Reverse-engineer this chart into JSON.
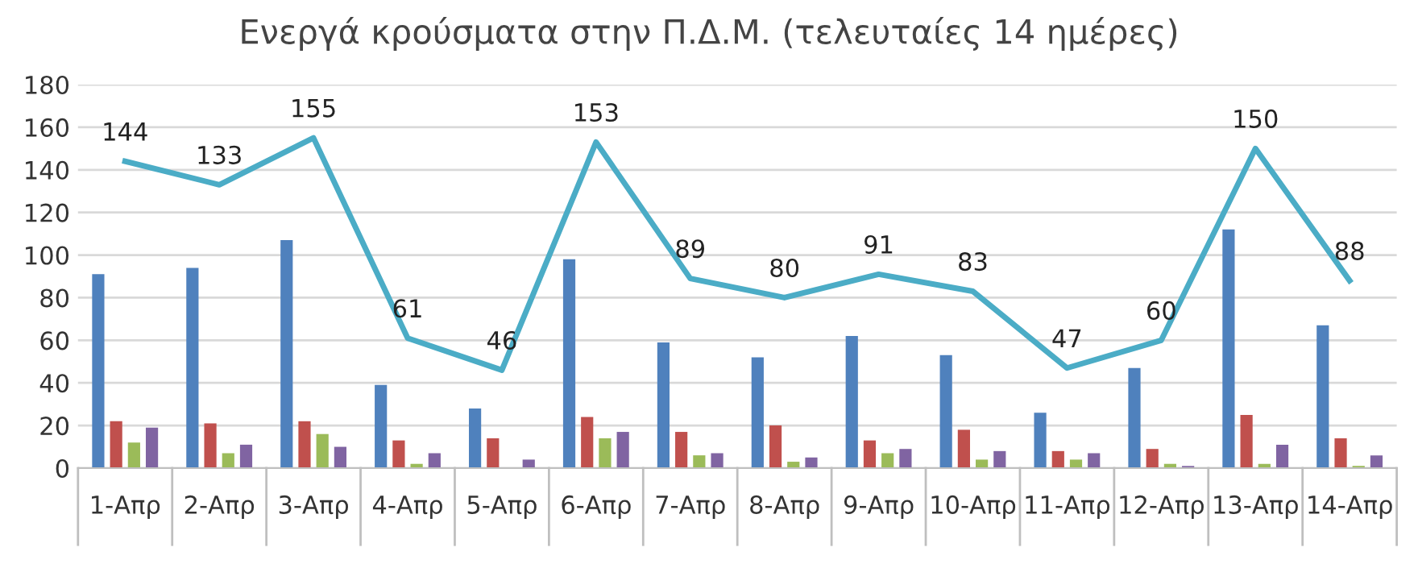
{
  "chart_data": {
    "type": "bar",
    "title": "Ενεργά κρούσματα στην Π.Δ.Μ. (τελευταίες 14 ημέρες)",
    "categories": [
      "1-Απρ",
      "2-Απρ",
      "3-Απρ",
      "4-Απρ",
      "5-Απρ",
      "6-Απρ",
      "7-Απρ",
      "8-Απρ",
      "9-Απρ",
      "10-Απρ",
      "11-Απρ",
      "12-Απρ",
      "13-Απρ",
      "14-Απρ"
    ],
    "series": [
      {
        "color": "#4f81bd",
        "values": [
          91,
          94,
          107,
          39,
          28,
          98,
          59,
          52,
          62,
          53,
          26,
          47,
          112,
          67
        ]
      },
      {
        "color": "#c0504d",
        "values": [
          22,
          21,
          22,
          13,
          14,
          24,
          17,
          20,
          13,
          18,
          8,
          9,
          25,
          14
        ]
      },
      {
        "color": "#9bbb59",
        "values": [
          12,
          7,
          16,
          2,
          0,
          14,
          6,
          3,
          7,
          4,
          4,
          2,
          2,
          1
        ]
      },
      {
        "color": "#8064a2",
        "values": [
          19,
          11,
          10,
          7,
          4,
          17,
          7,
          5,
          9,
          8,
          7,
          1,
          11,
          6
        ]
      },
      {
        "type": "line",
        "color": "#4bacc6",
        "marker": "none",
        "values": [
          144,
          133,
          155,
          61,
          46,
          153,
          89,
          80,
          91,
          83,
          47,
          60,
          150,
          88
        ],
        "value_labels": [
          "144",
          "133",
          "155",
          "61",
          "46",
          "153",
          "89",
          "80",
          "91",
          "83",
          "47",
          "60",
          "150",
          "88"
        ]
      }
    ],
    "ylim": [
      0,
      180
    ],
    "yticks": [
      0,
      20,
      40,
      60,
      80,
      100,
      120,
      140,
      160,
      180
    ],
    "grid": "y",
    "legend": false
  }
}
